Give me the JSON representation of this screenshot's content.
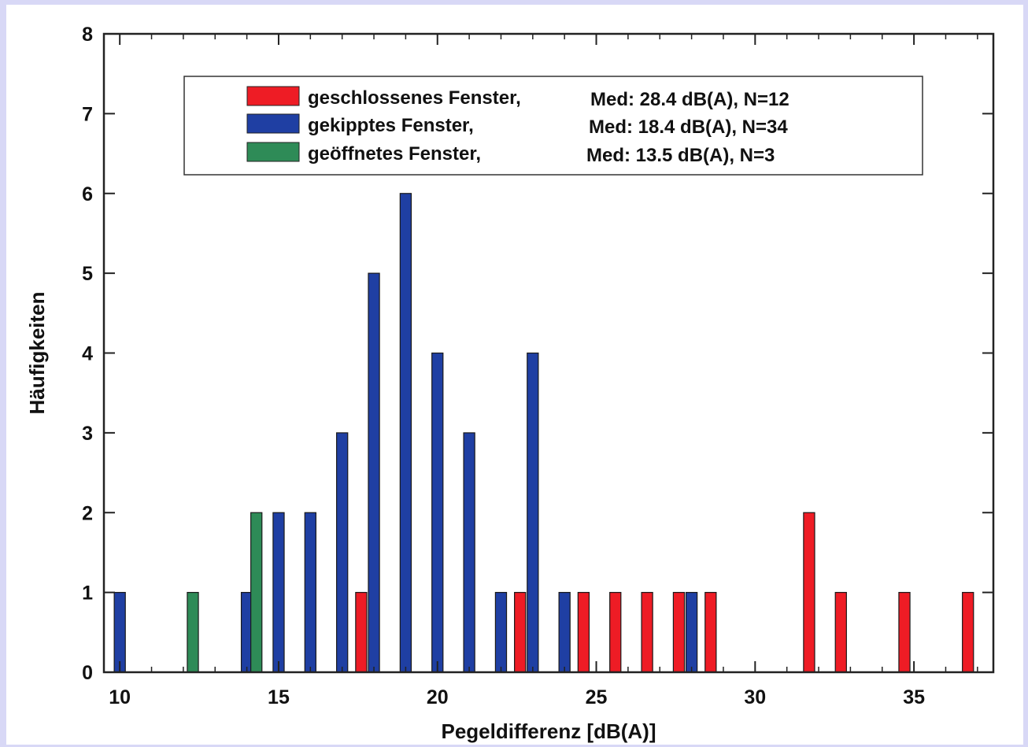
{
  "chart_data": {
    "type": "bar",
    "xlabel": "Pegeldifferenz [dB(A)]",
    "ylabel": "Häufigkeiten",
    "xlim": [
      9.5,
      37.5
    ],
    "ylim": [
      0,
      8
    ],
    "xticks": [
      10,
      15,
      20,
      25,
      30,
      35
    ],
    "yticks": [
      0,
      1,
      2,
      3,
      4,
      5,
      6,
      7,
      8
    ],
    "grid": false,
    "legend_position": "top-center",
    "bar_width": 0.35,
    "series": [
      {
        "name": "geschlossenes Fenster,",
        "median_label": "Med: 28.4 dB(A), N=12",
        "color": "#ee1c25",
        "x": [
          17.6,
          22.6,
          24.6,
          25.6,
          26.6,
          27.6,
          28.6,
          31.7,
          32.7,
          34.7,
          36.7
        ],
        "values": [
          1,
          1,
          1,
          1,
          1,
          1,
          1,
          2,
          1,
          1,
          1
        ]
      },
      {
        "name": "gekipptes Fenster,",
        "median_label": "Med: 18.4 dB(A), N=34",
        "color": "#1f3fa3",
        "x": [
          10.0,
          14.0,
          15.0,
          16.0,
          17.0,
          18.0,
          19.0,
          20.0,
          21.0,
          22.0,
          23.0,
          24.0,
          28.0
        ],
        "values": [
          1,
          1,
          2,
          2,
          3,
          5,
          6,
          4,
          3,
          1,
          4,
          1,
          1
        ]
      },
      {
        "name": "geöffnetes Fenster,",
        "median_label": "Med: 13.5 dB(A), N=3",
        "color": "#2e8b57",
        "x": [
          12.3,
          14.3
        ],
        "values": [
          1,
          2
        ]
      }
    ]
  }
}
